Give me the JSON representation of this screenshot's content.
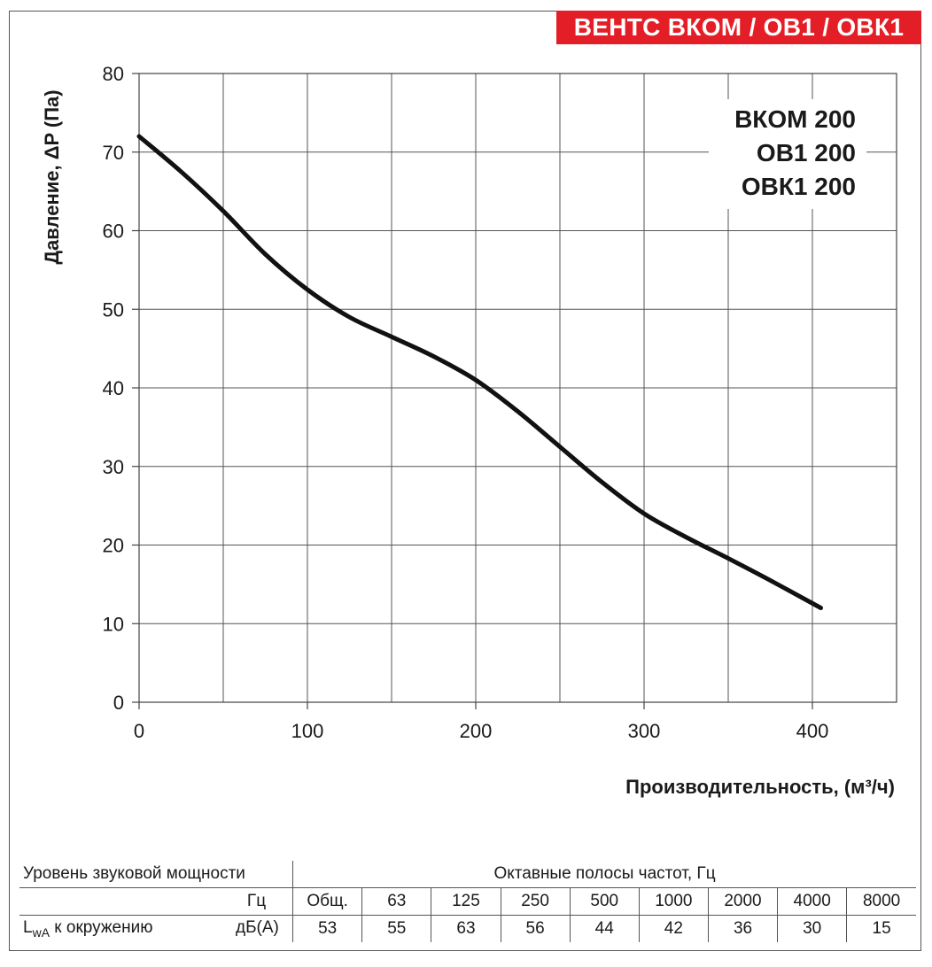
{
  "brand": {
    "title": "ВЕНТС ВКОМ / ОВ1 / ОВК1",
    "color": "#e41e26"
  },
  "chart_data": {
    "type": "line",
    "xlabel": "Производительность, (м³/ч)",
    "ylabel": "Давление, ΔP (Па)",
    "xlim": [
      0,
      450
    ],
    "ylim": [
      0,
      80
    ],
    "xticks": [
      0,
      100,
      200,
      300,
      400
    ],
    "yticks": [
      0,
      10,
      20,
      30,
      40,
      50,
      60,
      70,
      80
    ],
    "grid": true,
    "series_labels": [
      "ВКОМ 200",
      "ОВ1 200",
      "ОВК1 200"
    ],
    "series": [
      {
        "name": "ВКОМ 200 / ОВ1 200 / ОВК1 200",
        "color": "#111111",
        "x": [
          0,
          25,
          50,
          75,
          100,
          125,
          150,
          175,
          200,
          225,
          250,
          275,
          300,
          325,
          350,
          375,
          405
        ],
        "y": [
          72,
          67.5,
          62.5,
          57,
          52.5,
          49,
          46.5,
          44,
          41,
          37,
          32.5,
          28,
          24,
          21,
          18.3,
          15.5,
          12
        ]
      }
    ]
  },
  "sound_table": {
    "title": "Уровень звуковой мощности",
    "bands_title": "Октавные полосы частот, Гц",
    "unit_hz": "Гц",
    "bands": [
      "Общ.",
      "63",
      "125",
      "250",
      "500",
      "1000",
      "2000",
      "4000",
      "8000"
    ],
    "row_label_main": "L",
    "row_label_sub": "wA",
    "row_label_rest": " к окружению",
    "row_unit": "дБ(A)",
    "values": [
      "53",
      "55",
      "63",
      "56",
      "44",
      "42",
      "36",
      "30",
      "15"
    ]
  }
}
